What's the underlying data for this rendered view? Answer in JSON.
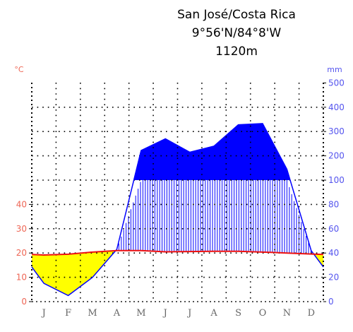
{
  "title": {
    "line1": "San José/Costa Rica",
    "line2": "9°56'N/84°8'W",
    "line3": "1120m"
  },
  "chart_data": {
    "type": "climate-diagram",
    "months": [
      "J",
      "F",
      "M",
      "A",
      "M",
      "J",
      "J",
      "A",
      "S",
      "O",
      "N",
      "D"
    ],
    "temperature": {
      "unit": "°C",
      "ticks": [
        0,
        10,
        20,
        30,
        40
      ],
      "ylim": [
        0,
        50
      ],
      "values": [
        19.2,
        19.5,
        20.4,
        21.0,
        21.0,
        20.5,
        20.6,
        20.7,
        20.7,
        20.4,
        20.0,
        19.6
      ],
      "color": "#ee1111"
    },
    "precipitation": {
      "unit": "mm",
      "ticks": [
        0,
        20,
        40,
        60,
        80,
        100,
        200,
        300,
        400,
        500
      ],
      "scale_note": "1 deg C = 2 mm up to 100 mm; compressed above 100 mm",
      "values": [
        15,
        5,
        20,
        43,
        222,
        270,
        215,
        240,
        328,
        333,
        145,
        42
      ],
      "color": "#0000ff"
    },
    "colors": {
      "dry_fill": "#ffff00",
      "wet_hatch": "#0000ff",
      "perhumid_fill": "#0000ff",
      "grid": "#000000"
    },
    "grid": true
  }
}
